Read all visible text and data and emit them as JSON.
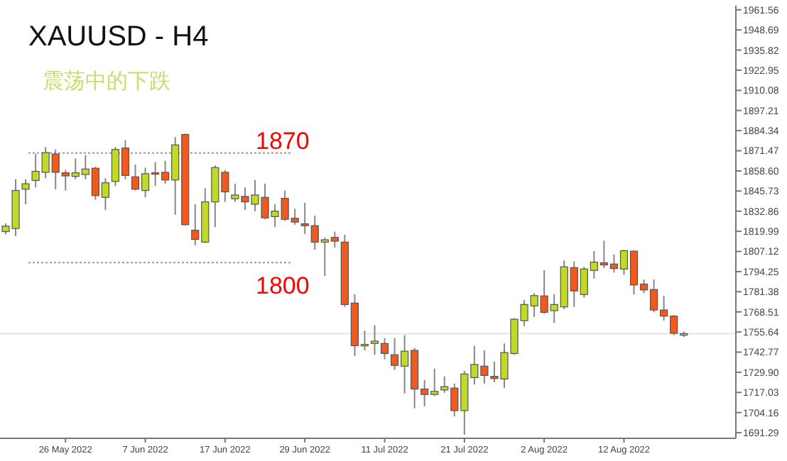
{
  "chart_data": {
    "type": "candlestick",
    "title": "XAUUSD - H4",
    "subtitle": "震荡中的下跌",
    "categories": [
      null,
      null,
      null,
      null,
      null,
      null,
      "26 May 2022",
      null,
      null,
      null,
      null,
      null,
      null,
      null,
      "7 Jun 2022",
      null,
      null,
      null,
      null,
      null,
      null,
      null,
      "17 Jun 2022",
      null,
      null,
      null,
      null,
      null,
      null,
      null,
      "29 Jun 2022",
      null,
      null,
      null,
      null,
      null,
      null,
      null,
      "11 Jul 2022",
      null,
      null,
      null,
      null,
      null,
      null,
      null,
      "21 Jul 2022",
      null,
      null,
      null,
      null,
      null,
      null,
      null,
      "2 Aug 2022",
      null,
      null,
      null,
      null,
      null,
      null,
      null,
      "12 Aug 2022",
      null,
      null,
      null,
      null,
      null,
      null
    ],
    "ohlc": [
      [
        1819.8,
        1825.1,
        1818.1,
        1823.3
      ],
      [
        1821.8,
        1853.3,
        1816.9,
        1846.1
      ],
      [
        1846.9,
        1853.3,
        1837.3,
        1850.4
      ],
      [
        1852.5,
        1869.4,
        1848.1,
        1858.3
      ],
      [
        1857.7,
        1873.8,
        1853.9,
        1870.3
      ],
      [
        1869.4,
        1872.3,
        1846.9,
        1857.7
      ],
      [
        1857.4,
        1859.2,
        1846.1,
        1855.4
      ],
      [
        1855.1,
        1866.5,
        1853.3,
        1857.4
      ],
      [
        1856.3,
        1868.6,
        1853.3,
        1859.8
      ],
      [
        1860.3,
        1861.2,
        1840.2,
        1842.8
      ],
      [
        1841.7,
        1853.9,
        1833.6,
        1851.0
      ],
      [
        1851.9,
        1873.8,
        1848.9,
        1872.3
      ],
      [
        1873.2,
        1878.2,
        1853.3,
        1855.7
      ],
      [
        1854.8,
        1862.7,
        1846.1,
        1846.9
      ],
      [
        1846.1,
        1860.7,
        1841.7,
        1856.8
      ],
      [
        1857.4,
        1864.2,
        1849.0,
        1857.0
      ],
      [
        1857.7,
        1865.0,
        1850.4,
        1852.8
      ],
      [
        1852.8,
        1880.2,
        1830.6,
        1875.2
      ],
      [
        1881.9,
        1882.5,
        1823.8,
        1824.2
      ],
      [
        1820.7,
        1837.3,
        1811.1,
        1814.8
      ],
      [
        1813.1,
        1847.5,
        1812.5,
        1838.8
      ],
      [
        1838.8,
        1862.1,
        1822.7,
        1860.7
      ],
      [
        1857.7,
        1859.2,
        1838.8,
        1845.2
      ],
      [
        1840.8,
        1850.4,
        1838.8,
        1843.2
      ],
      [
        1842.3,
        1848.1,
        1833.6,
        1838.8
      ],
      [
        1837.3,
        1852.8,
        1832.9,
        1843.2
      ],
      [
        1841.7,
        1850.4,
        1827.7,
        1828.6
      ],
      [
        1829.4,
        1837.3,
        1822.7,
        1832.9
      ],
      [
        1841.1,
        1846.1,
        1826.6,
        1827.7
      ],
      [
        1828.3,
        1834.4,
        1824.2,
        1825.9
      ],
      [
        1824.8,
        1838.2,
        1818.3,
        1823.6
      ],
      [
        1823.6,
        1830.0,
        1808.2,
        1813.1
      ],
      [
        1813.1,
        1816.1,
        1791.5,
        1814.6
      ],
      [
        1816.1,
        1819.8,
        1809.6,
        1813.7
      ],
      [
        1813.1,
        1817.8,
        1771.7,
        1773.2
      ],
      [
        1774.1,
        1779.8,
        1740.2,
        1746.9
      ],
      [
        1747.2,
        1756.5,
        1743.9,
        1747.7
      ],
      [
        1748.3,
        1760.0,
        1741.1,
        1749.8
      ],
      [
        1748.3,
        1751.8,
        1738.2,
        1741.9
      ],
      [
        1741.1,
        1751.8,
        1731.4,
        1734.3
      ],
      [
        1733.8,
        1753.6,
        1716.3,
        1743.4
      ],
      [
        1743.9,
        1745.4,
        1706.9,
        1719.2
      ],
      [
        1719.2,
        1725.0,
        1708.1,
        1715.7
      ],
      [
        1715.7,
        1732.3,
        1714.8,
        1717.7
      ],
      [
        1718.6,
        1727.3,
        1716.8,
        1720.7
      ],
      [
        1719.8,
        1722.7,
        1701.7,
        1705.4
      ],
      [
        1705.4,
        1730.8,
        1690.0,
        1728.8
      ],
      [
        1726.5,
        1746.9,
        1722.1,
        1734.9
      ],
      [
        1733.8,
        1743.9,
        1722.7,
        1727.9
      ],
      [
        1727.3,
        1736.7,
        1723.6,
        1725.9
      ],
      [
        1725.6,
        1748.3,
        1719.8,
        1742.5
      ],
      [
        1741.9,
        1764.4,
        1741.1,
        1763.8
      ],
      [
        1762.9,
        1776.1,
        1759.4,
        1773.2
      ],
      [
        1772.3,
        1780.4,
        1765.3,
        1778.9
      ],
      [
        1778.7,
        1795.1,
        1767.3,
        1768.2
      ],
      [
        1769.3,
        1779.8,
        1761.4,
        1773.2
      ],
      [
        1771.7,
        1801.4,
        1770.2,
        1797.3
      ],
      [
        1796.8,
        1800.8,
        1771.7,
        1781.9
      ],
      [
        1779.6,
        1797.3,
        1777.6,
        1795.9
      ],
      [
        1795.0,
        1807.3,
        1789.8,
        1800.3
      ],
      [
        1799.9,
        1814.0,
        1796.5,
        1798.5
      ],
      [
        1799.1,
        1805.2,
        1793.6,
        1796.2
      ],
      [
        1795.9,
        1808.2,
        1792.1,
        1807.6
      ],
      [
        1807.3,
        1807.8,
        1779.6,
        1785.7
      ],
      [
        1786.3,
        1789.2,
        1780.4,
        1782.5
      ],
      [
        1782.8,
        1789.2,
        1768.2,
        1769.7
      ],
      [
        1769.7,
        1778.9,
        1762.9,
        1765.8
      ],
      [
        1765.8,
        1766.4,
        1753.6,
        1754.8
      ],
      [
        1753.6,
        1755.9,
        1752.4,
        1754.6
      ]
    ],
    "ylim": [
      1687.7,
      1964.2
    ],
    "yticks": [
      {
        "value": 1961.56,
        "label": "1961.56"
      },
      {
        "value": 1948.69,
        "label": "1948.69"
      },
      {
        "value": 1935.82,
        "label": "1935.82"
      },
      {
        "value": 1922.95,
        "label": "1922.95"
      },
      {
        "value": 1910.08,
        "label": "1910.08"
      },
      {
        "value": 1897.21,
        "label": "1897.21"
      },
      {
        "value": 1884.34,
        "label": "1884.34"
      },
      {
        "value": 1871.47,
        "label": "1871.47"
      },
      {
        "value": 1858.6,
        "label": "1858.60"
      },
      {
        "value": 1845.73,
        "label": "1845.73"
      },
      {
        "value": 1832.86,
        "label": "1832.86"
      },
      {
        "value": 1819.99,
        "label": "1819.99"
      },
      {
        "value": 1807.12,
        "label": "1807.12"
      },
      {
        "value": 1794.25,
        "label": "1794.25"
      },
      {
        "value": 1781.38,
        "label": "1781.38"
      },
      {
        "value": 1768.51,
        "label": "1768.51"
      },
      {
        "value": 1755.64,
        "label": "1755.64"
      },
      {
        "value": 1742.77,
        "label": "1742.77"
      },
      {
        "value": 1729.9,
        "label": "1729.90"
      },
      {
        "value": 1717.03,
        "label": "1717.03"
      },
      {
        "value": 1704.16,
        "label": "1704.16"
      },
      {
        "value": 1691.29,
        "label": "1691.29"
      }
    ],
    "ref_lines": [
      {
        "axis": "y",
        "value": 1870,
        "label": "1870",
        "color": "#999999",
        "line_style": "dotted"
      },
      {
        "axis": "y",
        "value": 1800,
        "label": "1800",
        "color": "#999999",
        "line_style": "dotted"
      },
      {
        "axis": "y",
        "value": 1754.6,
        "color": "#e6e6e6",
        "line_style": "solid"
      }
    ]
  }
}
